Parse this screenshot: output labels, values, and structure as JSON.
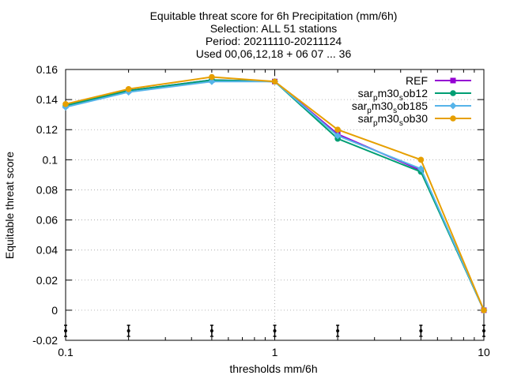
{
  "chart_data": {
    "type": "line",
    "title_lines": [
      "Equitable threat score  for 6h Precipitation (mm/6h)",
      "Selection: ALL     51 stations",
      "Period: 20211110-20211124",
      "Used 00,06,12,18 + 06 07 ... 36"
    ],
    "xlabel": "thresholds mm/6h",
    "ylabel": "Equitable threat score",
    "x_scale": "log",
    "xlim": [
      0.1,
      10
    ],
    "ylim": [
      -0.02,
      0.16
    ],
    "x_ticks": [
      {
        "value": 0.1,
        "label": "0.1"
      },
      {
        "value": 1,
        "label": "1"
      },
      {
        "value": 10,
        "label": "10"
      }
    ],
    "y_ticks": [
      {
        "value": -0.02,
        "label": "-0.02"
      },
      {
        "value": 0,
        "label": "0"
      },
      {
        "value": 0.02,
        "label": "0.02"
      },
      {
        "value": 0.04,
        "label": "0.04"
      },
      {
        "value": 0.06,
        "label": "0.06"
      },
      {
        "value": 0.08,
        "label": "0.08"
      },
      {
        "value": 0.1,
        "label": "0.1"
      },
      {
        "value": 0.12,
        "label": "0.12"
      },
      {
        "value": 0.14,
        "label": "0.14"
      },
      {
        "value": 0.16,
        "label": "0.16"
      }
    ],
    "grid": true,
    "legend_position": "top-right",
    "x": [
      0.1,
      0.2,
      0.5,
      1,
      2,
      5,
      10
    ],
    "series": [
      {
        "name": "REF",
        "legend_label": {
          "base": "REF",
          "sub": "",
          "rest": ""
        },
        "color": "#9400d3",
        "marker": "square",
        "values": [
          0.136,
          0.146,
          0.153,
          0.152,
          0.117,
          0.093,
          0.0
        ]
      },
      {
        "name": "sar_pm30_sob12",
        "legend_label": {
          "base": "sar",
          "sub": "p",
          "rest": "m30",
          "sub2": "s",
          "rest2": "ob12"
        },
        "color": "#009e73",
        "marker": "circle",
        "values": [
          0.136,
          0.146,
          0.153,
          0.152,
          0.114,
          0.092,
          0.0
        ]
      },
      {
        "name": "sar_pm30_sob185",
        "legend_label": {
          "base": "sar",
          "sub": "p",
          "rest": "m30",
          "sub2": "s",
          "rest2": "ob185"
        },
        "color": "#56b4e9",
        "marker": "diamond",
        "values": [
          0.135,
          0.145,
          0.152,
          0.152,
          0.116,
          0.094,
          0.0
        ]
      },
      {
        "name": "sar_pm30_sob30",
        "legend_label": {
          "base": "sar",
          "sub": "p",
          "rest": "m30",
          "sub2": "s",
          "rest2": "ob30"
        },
        "color": "#e69f00",
        "marker": "circle",
        "values": [
          0.137,
          0.147,
          0.155,
          0.152,
          0.12,
          0.1,
          0.0
        ]
      }
    ],
    "error_bar_x": [
      0.1,
      0.2,
      0.5,
      1,
      2,
      5,
      10
    ]
  }
}
